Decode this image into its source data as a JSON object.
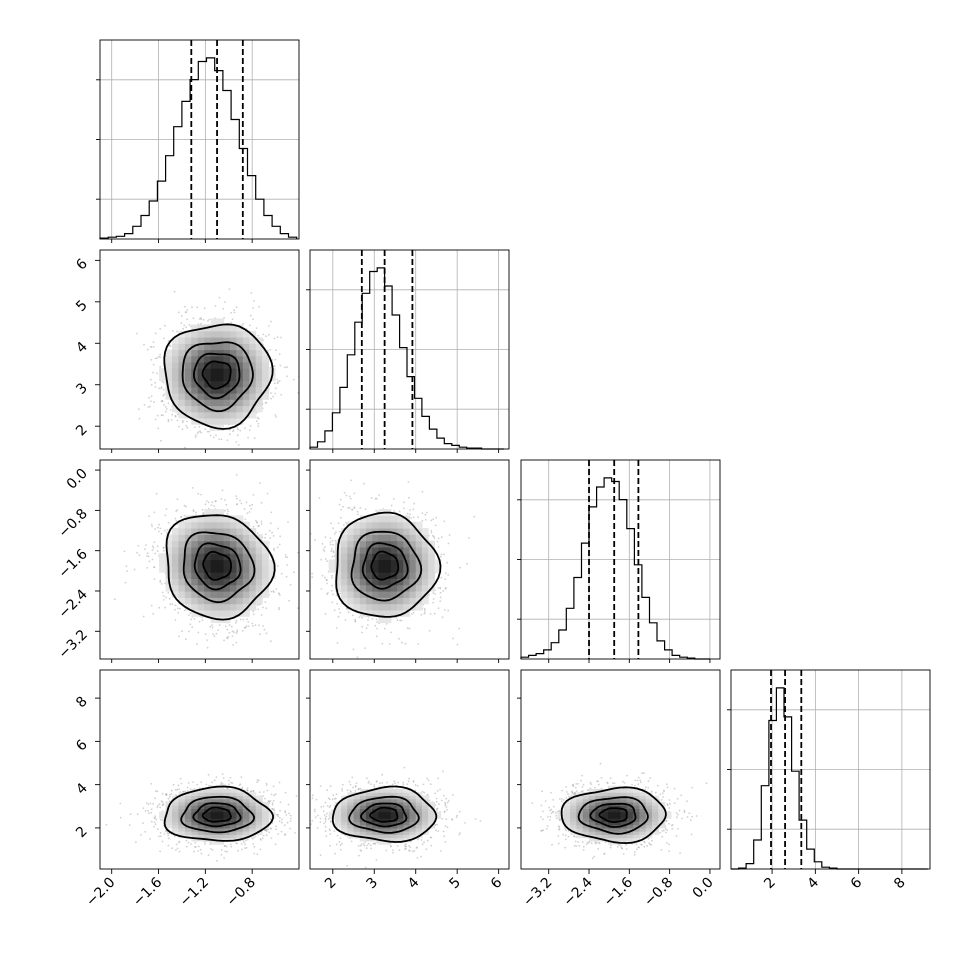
{
  "chart_data": {
    "type": "corner",
    "grid": true,
    "parameters": [
      {
        "range": [
          -2.1,
          -0.4
        ],
        "ticks": [
          -2.0,
          -1.6,
          -1.2,
          -0.8
        ],
        "tick_labels": [
          "−2.0",
          "−1.6",
          "−1.2",
          "−0.8"
        ],
        "mean": -1.1,
        "sd": 0.22,
        "quantiles": [
          -1.32,
          -1.1,
          -0.88
        ]
      },
      {
        "range": [
          1.45,
          6.25
        ],
        "ticks": [
          2,
          3,
          4,
          5,
          6
        ],
        "tick_labels": [
          "2",
          "3",
          "4",
          "5",
          "6"
        ],
        "mean": 3.25,
        "sd": 0.6,
        "quantiles": [
          2.7,
          3.25,
          3.92
        ]
      },
      {
        "range": [
          -3.75,
          0.2
        ],
        "ticks": [
          -3.2,
          -2.4,
          -1.6,
          -0.8,
          0.0
        ],
        "tick_labels": [
          "−3.2",
          "−2.4",
          "−1.6",
          "−0.8",
          "0.0"
        ],
        "mean": -1.9,
        "sd": 0.5,
        "quantiles": [
          -2.4,
          -1.9,
          -1.42
        ]
      },
      {
        "range": [
          0.1,
          9.3
        ],
        "ticks": [
          2,
          4,
          6,
          8
        ],
        "tick_labels": [
          "2",
          "4",
          "6",
          "8"
        ],
        "mean": 2.6,
        "sd": 0.6,
        "quantiles": [
          1.95,
          2.6,
          3.35
        ]
      }
    ],
    "histograms": [
      {
        "param": 0,
        "bin_edges": [
          -2.1,
          -2.03,
          -1.96,
          -1.89,
          -1.82,
          -1.75,
          -1.68,
          -1.61,
          -1.54,
          -1.47,
          -1.4,
          -1.33,
          -1.26,
          -1.19,
          -1.12,
          -1.05,
          -0.98,
          -0.91,
          -0.84,
          -0.77,
          -0.7,
          -0.63,
          -0.56,
          -0.49,
          -0.42
        ],
        "counts": [
          0.5,
          1,
          1.5,
          3,
          7,
          13,
          21,
          32,
          46,
          62,
          76,
          88,
          98,
          100,
          93,
          82,
          66,
          50,
          35,
          22,
          13,
          7,
          3,
          1
        ]
      },
      {
        "param": 1,
        "bin_edges": [
          1.45,
          1.63,
          1.81,
          1.99,
          2.17,
          2.35,
          2.53,
          2.71,
          2.89,
          3.07,
          3.25,
          3.43,
          3.61,
          3.79,
          3.97,
          4.15,
          4.33,
          4.51,
          4.69,
          4.87,
          5.05,
          5.23,
          5.41,
          5.59,
          5.77,
          5.95,
          6.13
        ],
        "counts": [
          1,
          4,
          10,
          20,
          34,
          52,
          70,
          86,
          98,
          100,
          90,
          74,
          56,
          40,
          28,
          18,
          11,
          6,
          3,
          2,
          1,
          0.5,
          0.5,
          0,
          0,
          0
        ]
      },
      {
        "param": 2,
        "bin_edges": [
          -3.75,
          -3.6,
          -3.45,
          -3.3,
          -3.15,
          -3.0,
          -2.85,
          -2.7,
          -2.55,
          -2.4,
          -2.25,
          -2.1,
          -1.95,
          -1.8,
          -1.65,
          -1.5,
          -1.35,
          -1.2,
          -1.05,
          -0.9,
          -0.75,
          -0.6,
          -0.45,
          -0.3,
          -0.15,
          0.0
        ],
        "counts": [
          1,
          2,
          3,
          5,
          9,
          16,
          28,
          45,
          64,
          84,
          95,
          100,
          98,
          88,
          72,
          52,
          34,
          20,
          10,
          5,
          2,
          1,
          0.5,
          0,
          0
        ]
      },
      {
        "param": 3,
        "bin_edges": [
          0.1,
          0.45,
          0.8,
          1.15,
          1.5,
          1.85,
          2.2,
          2.55,
          2.9,
          3.25,
          3.6,
          3.95,
          4.3,
          4.65,
          5.0,
          5.35,
          5.7,
          6.05,
          6.4,
          6.75,
          7.1,
          7.45,
          7.8,
          8.15,
          8.5,
          8.85,
          9.2
        ],
        "counts": [
          0,
          0.5,
          3,
          16,
          46,
          82,
          100,
          84,
          54,
          27,
          11,
          4,
          1,
          0.5,
          0,
          0,
          0,
          0,
          0,
          0,
          0,
          0,
          0,
          0,
          0,
          0
        ]
      }
    ],
    "pairs": [
      {
        "x": 0,
        "y": 1,
        "rho": 0.0
      },
      {
        "x": 0,
        "y": 2,
        "rho": -0.08
      },
      {
        "x": 1,
        "y": 2,
        "rho": 0.0
      },
      {
        "x": 0,
        "y": 3,
        "rho": 0.0
      },
      {
        "x": 1,
        "y": 3,
        "rho": 0.0
      },
      {
        "x": 2,
        "y": 3,
        "rho": 0.0
      }
    ],
    "contour_levels_sigma": [
      0.5,
      1.0,
      1.5,
      2.0
    ]
  }
}
